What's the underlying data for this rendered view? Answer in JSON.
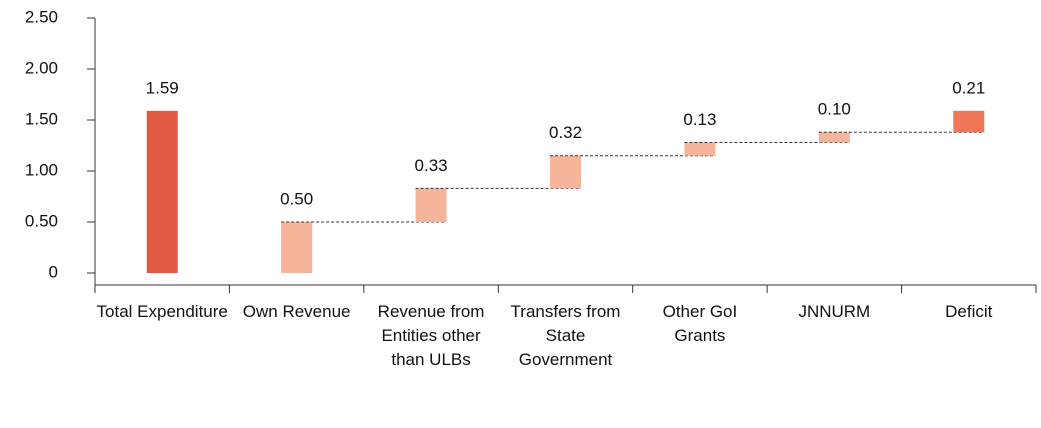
{
  "chart_data": {
    "type": "waterfall",
    "categories": [
      "Total Expenditure",
      "Own Revenue",
      "Revenue from Entities other than ULBs",
      "Transfers from State Government",
      "Other GoI Grants",
      "JNNURM",
      "Deficit"
    ],
    "values": [
      1.59,
      0.5,
      0.33,
      0.32,
      0.13,
      0.1,
      0.21
    ],
    "value_labels": [
      "1.59",
      "0.50",
      "0.33",
      "0.32",
      "0.13",
      "0.10",
      "0.21"
    ],
    "colors": [
      "#e05a44",
      "#f6b59b",
      "#f6b59b",
      "#f6b59b",
      "#f6b59b",
      "#f6b59b",
      "#ef7656"
    ],
    "ylim": [
      0,
      2.5
    ],
    "yticks": [
      0,
      {
        "value": 0.5,
        "label": "0.50"
      },
      {
        "value": 1,
        "label": "1.00"
      },
      {
        "value": 1.5,
        "label": "1.50"
      },
      {
        "value": 2,
        "label": "2.00"
      },
      {
        "value": 2.5,
        "label": "2.50"
      }
    ]
  }
}
